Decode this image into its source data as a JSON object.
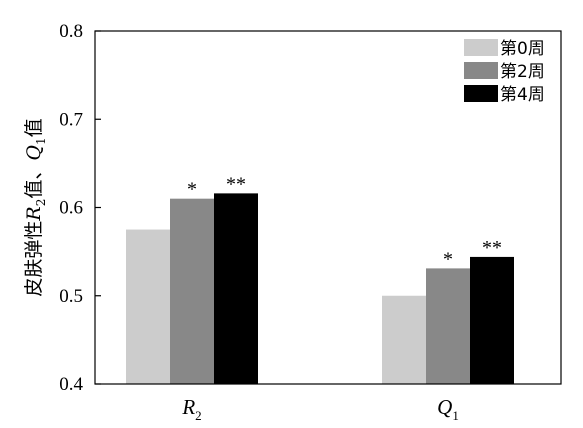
{
  "chart_data": {
    "type": "bar",
    "categories": [
      {
        "label": "R",
        "sub": "2"
      },
      {
        "label": "Q",
        "sub": "1"
      }
    ],
    "series": [
      {
        "name": "第0周",
        "color": "#cccccc",
        "values": [
          0.575,
          0.5
        ],
        "sig": [
          "",
          ""
        ]
      },
      {
        "name": "第2周",
        "color": "#888888",
        "values": [
          0.61,
          0.531
        ],
        "sig": [
          "*",
          "*"
        ]
      },
      {
        "name": "第4周",
        "color": "#000000",
        "values": [
          0.616,
          0.544
        ],
        "sig": [
          "**",
          "**"
        ]
      }
    ],
    "ylim": [
      0.4,
      0.8
    ],
    "yticks": [
      "0.4",
      "0.5",
      "0.6",
      "0.7",
      "0.8"
    ],
    "ylabel": {
      "parts": [
        {
          "text": "皮肤弹性",
          "italic": false
        },
        {
          "text": "R",
          "italic": true
        },
        {
          "text": "2",
          "sub": true
        },
        {
          "text": "值、",
          "italic": false
        },
        {
          "text": "Q",
          "italic": true
        },
        {
          "text": "1",
          "sub": true
        },
        {
          "text": "值",
          "italic": false
        }
      ]
    },
    "legend_position": "top-right",
    "grid": false
  }
}
